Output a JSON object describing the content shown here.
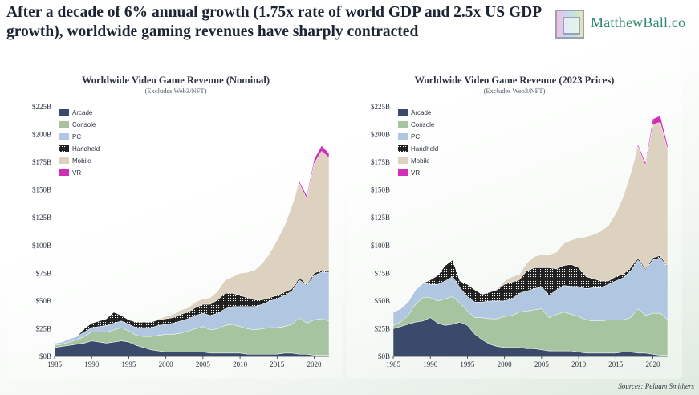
{
  "headline": "After a decade of 6% annual growth (1.75x rate of world GDP and 2.5x US GDP growth), worldwide gaming revenues have sharply contracted",
  "brand": "MatthewBall.co",
  "source": "Sources: Pelham Smithers",
  "colors": {
    "Arcade": "#3a4a6b",
    "Console": "#a7c4a0",
    "PC": "#b1c6e0",
    "Handheld": "#1f1f1f",
    "Mobile": "#ddd2c0",
    "VR": "#d12fb8"
  },
  "chart_data": [
    {
      "type": "area",
      "stacked": true,
      "title": "Worldwide Video Game Revenue (Nominal)",
      "subtitle": "(Excludes Web3/NFT)",
      "ylim": [
        0,
        225
      ],
      "yticks": [
        "$0B",
        "$25B",
        "$50B",
        "$75B",
        "$100B",
        "$125B",
        "$150B",
        "$175B",
        "$200B",
        "$225B"
      ],
      "xticks": [
        "1985",
        "1990",
        "1995",
        "2000",
        "2005",
        "2010",
        "2015",
        "2020"
      ],
      "legend_position": "top-left",
      "x": [
        1985,
        1986,
        1987,
        1988,
        1989,
        1990,
        1991,
        1992,
        1993,
        1994,
        1995,
        1996,
        1997,
        1998,
        1999,
        2000,
        2001,
        2002,
        2003,
        2004,
        2005,
        2006,
        2007,
        2008,
        2009,
        2010,
        2011,
        2012,
        2013,
        2014,
        2015,
        2016,
        2017,
        2018,
        2019,
        2020,
        2021,
        2022
      ],
      "series": [
        {
          "name": "Arcade",
          "values": [
            8,
            9,
            10,
            11,
            12,
            14,
            13,
            12,
            13,
            14,
            13,
            10,
            8,
            6,
            5,
            4,
            4,
            4,
            4,
            4,
            4,
            3,
            3,
            3,
            3,
            3,
            2,
            2,
            2,
            2,
            2,
            3,
            3,
            2,
            2,
            1,
            1,
            1
          ]
        },
        {
          "name": "Console",
          "values": [
            2,
            2,
            3,
            4,
            6,
            8,
            9,
            10,
            11,
            12,
            10,
            9,
            10,
            12,
            14,
            16,
            16,
            17,
            19,
            21,
            23,
            21,
            22,
            25,
            26,
            24,
            23,
            22,
            23,
            24,
            24,
            24,
            26,
            33,
            28,
            32,
            33,
            31
          ]
        },
        {
          "name": "PC",
          "values": [
            2,
            2,
            3,
            3,
            4,
            4,
            5,
            6,
            6,
            6,
            6,
            7,
            8,
            8,
            9,
            9,
            10,
            11,
            11,
            12,
            12,
            13,
            14,
            15,
            16,
            18,
            20,
            21,
            22,
            24,
            26,
            28,
            30,
            34,
            34,
            40,
            42,
            44
          ]
        },
        {
          "name": "Handheld",
          "values": [
            0,
            0,
            0,
            0,
            3,
            4,
            5,
            6,
            10,
            5,
            4,
            5,
            5,
            5,
            5,
            5,
            5,
            6,
            6,
            7,
            8,
            10,
            12,
            14,
            12,
            10,
            8,
            6,
            4,
            3,
            3,
            3,
            2,
            2,
            1,
            2,
            2,
            1
          ]
        },
        {
          "name": "Mobile",
          "values": [
            0,
            0,
            0,
            0,
            0,
            0,
            0,
            0,
            0,
            0,
            0,
            0,
            0,
            0,
            1,
            2,
            3,
            4,
            4,
            5,
            5,
            6,
            8,
            12,
            15,
            20,
            23,
            27,
            33,
            40,
            50,
            60,
            75,
            85,
            77,
            99,
            107,
            102
          ]
        },
        {
          "name": "VR",
          "values": [
            0,
            0,
            0,
            0,
            0,
            0,
            0,
            0,
            0,
            0,
            0,
            0,
            0,
            0,
            0,
            0,
            0,
            0,
            0,
            0,
            0,
            0,
            0,
            0,
            0,
            0,
            0,
            0,
            0,
            0,
            0,
            0,
            0,
            2,
            3,
            4,
            5,
            4
          ]
        }
      ]
    },
    {
      "type": "area",
      "stacked": true,
      "title": "Worldwide Video Game Revenue (2023 Prices)",
      "subtitle": "(Excludes Web3/NFT)",
      "ylim": [
        0,
        225
      ],
      "yticks": [
        "$0B",
        "$25B",
        "$50B",
        "$75B",
        "$100B",
        "$125B",
        "$150B",
        "$175B",
        "$200B",
        "$225B"
      ],
      "xticks": [
        "1985",
        "1990",
        "1995",
        "2000",
        "2005",
        "2010",
        "2015",
        "2020"
      ],
      "legend_position": "top-left",
      "x": [
        1985,
        1986,
        1987,
        1988,
        1989,
        1990,
        1991,
        1992,
        1993,
        1994,
        1995,
        1996,
        1997,
        1998,
        1999,
        2000,
        2001,
        2002,
        2003,
        2004,
        2005,
        2006,
        2007,
        2008,
        2009,
        2010,
        2011,
        2012,
        2013,
        2014,
        2015,
        2016,
        2017,
        2018,
        2019,
        2020,
        2021,
        2022
      ],
      "series": [
        {
          "name": "Arcade",
          "values": [
            25,
            27,
            29,
            31,
            32,
            35,
            30,
            28,
            29,
            31,
            28,
            20,
            15,
            11,
            9,
            8,
            8,
            8,
            7,
            7,
            6,
            5,
            5,
            5,
            5,
            4,
            3,
            3,
            3,
            3,
            3,
            4,
            4,
            3,
            3,
            2,
            1,
            1
          ]
        },
        {
          "name": "Console",
          "values": [
            3,
            4,
            8,
            16,
            21,
            18,
            20,
            24,
            25,
            17,
            13,
            15,
            20,
            23,
            25,
            28,
            29,
            32,
            34,
            35,
            37,
            30,
            33,
            35,
            33,
            32,
            30,
            29,
            29,
            30,
            30,
            29,
            31,
            40,
            34,
            37,
            38,
            32
          ]
        },
        {
          "name": "PC",
          "values": [
            12,
            12,
            12,
            13,
            13,
            12,
            15,
            16,
            18,
            14,
            13,
            14,
            14,
            16,
            16,
            14,
            15,
            17,
            18,
            19,
            20,
            20,
            22,
            24,
            25,
            27,
            28,
            30,
            30,
            32,
            35,
            38,
            42,
            44,
            41,
            48,
            50,
            47
          ]
        },
        {
          "name": "Handheld",
          "values": [
            0,
            0,
            0,
            0,
            0,
            4,
            8,
            14,
            15,
            6,
            11,
            11,
            7,
            8,
            10,
            15,
            15,
            12,
            18,
            19,
            17,
            25,
            19,
            18,
            20,
            17,
            11,
            8,
            6,
            3,
            4,
            3,
            3,
            2,
            1,
            2,
            2,
            1
          ]
        },
        {
          "name": "Mobile",
          "values": [
            0,
            0,
            0,
            0,
            0,
            0,
            0,
            0,
            0,
            0,
            0,
            0,
            0,
            0,
            1,
            3,
            5,
            5,
            7,
            10,
            12,
            12,
            15,
            20,
            22,
            27,
            36,
            40,
            45,
            50,
            57,
            70,
            85,
            100,
            93,
            120,
            120,
            105
          ]
        },
        {
          "name": "VR",
          "values": [
            0,
            0,
            0,
            0,
            0,
            0,
            0,
            0,
            0,
            0,
            0,
            0,
            0,
            0,
            0,
            0,
            0,
            0,
            0,
            0,
            0,
            0,
            0,
            0,
            0,
            0,
            0,
            0,
            0,
            0,
            0,
            0,
            0,
            2,
            3,
            5,
            6,
            4
          ]
        }
      ]
    }
  ]
}
